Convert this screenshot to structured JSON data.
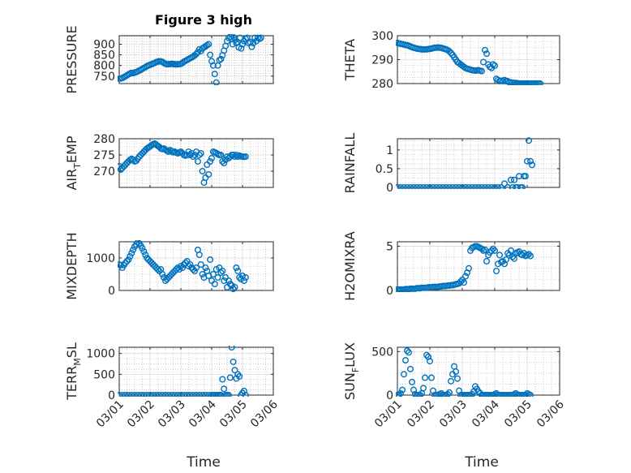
{
  "figure": {
    "title": "Figure 3 high",
    "xlabel": "Time",
    "x_tick_labels": [
      "03/01",
      "03/02",
      "03/03",
      "03/04",
      "03/05",
      "03/06"
    ],
    "marker_color": "#0072BD",
    "grid_color": "#b0b0b0"
  },
  "chart_data": [
    {
      "type": "scatter",
      "ylabel": "PRESSURE",
      "yticks": [
        750,
        800,
        850,
        900
      ],
      "ylim": [
        715,
        940
      ],
      "xlim": [
        0,
        5
      ],
      "grid": true,
      "x": [
        0.0,
        0.05,
        0.1,
        0.15,
        0.2,
        0.25,
        0.3,
        0.35,
        0.4,
        0.45,
        0.5,
        0.55,
        0.6,
        0.65,
        0.7,
        0.75,
        0.8,
        0.85,
        0.9,
        0.95,
        1.0,
        1.05,
        1.1,
        1.15,
        1.2,
        1.25,
        1.3,
        1.35,
        1.4,
        1.45,
        1.5,
        1.55,
        1.6,
        1.65,
        1.7,
        1.75,
        1.8,
        1.85,
        1.9,
        1.95,
        2.0,
        2.05,
        2.1,
        2.15,
        2.2,
        2.25,
        2.3,
        2.35,
        2.4,
        2.45,
        2.5,
        2.55,
        2.6,
        2.65,
        2.7,
        2.75,
        2.8,
        2.85,
        2.9,
        2.95,
        3.0,
        3.05,
        3.1,
        3.15,
        3.2,
        3.25,
        3.3,
        3.35,
        3.4,
        3.45,
        3.5,
        3.55,
        3.6,
        3.65,
        3.68,
        3.72,
        3.76,
        3.8,
        3.84,
        3.88,
        3.92,
        3.96,
        4.0,
        4.05,
        4.1,
        4.15,
        4.2,
        4.25,
        4.3,
        4.35,
        4.4,
        4.45,
        4.5,
        4.55,
        4.6
      ],
      "y": [
        738,
        739,
        741,
        745,
        749,
        754,
        758,
        762,
        765,
        764,
        767,
        769,
        772,
        776,
        780,
        784,
        788,
        792,
        797,
        800,
        803,
        806,
        809,
        812,
        816,
        818,
        820,
        819,
        817,
        812,
        808,
        806,
        806,
        807,
        808,
        807,
        806,
        805,
        806,
        806,
        808,
        812,
        818,
        822,
        826,
        830,
        834,
        838,
        842,
        848,
        854,
        862,
        876,
        868,
        880,
        885,
        890,
        895,
        900,
        850,
        820,
        800,
        760,
        720,
        800,
        825,
        830,
        848,
        870,
        892,
        915,
        930,
        935,
        926,
        900,
        932,
        920,
        905,
        910,
        885,
        930,
        880,
        900,
        915,
        925,
        930,
        905,
        910,
        888,
        905,
        930,
        915,
        930,
        925,
        930
      ]
    },
    {
      "type": "scatter",
      "ylabel": "THETA",
      "yticks": [
        280,
        290,
        300
      ],
      "ylim": [
        280,
        300
      ],
      "xlim": [
        0,
        5
      ],
      "grid": true,
      "x": [
        0.0,
        0.05,
        0.1,
        0.15,
        0.2,
        0.25,
        0.3,
        0.35,
        0.4,
        0.45,
        0.5,
        0.55,
        0.6,
        0.65,
        0.7,
        0.75,
        0.8,
        0.85,
        0.9,
        0.95,
        1.0,
        1.05,
        1.1,
        1.15,
        1.2,
        1.25,
        1.3,
        1.35,
        1.4,
        1.45,
        1.5,
        1.55,
        1.6,
        1.65,
        1.7,
        1.75,
        1.8,
        1.85,
        1.9,
        1.95,
        2.0,
        2.05,
        2.1,
        2.15,
        2.2,
        2.25,
        2.3,
        2.35,
        2.4,
        2.45,
        2.5,
        2.55,
        2.6,
        2.65,
        2.7,
        2.75,
        2.8,
        2.85,
        2.9,
        2.95,
        3.0,
        3.05,
        3.1,
        3.15,
        3.2,
        3.25,
        3.3,
        3.35,
        3.4,
        3.45,
        3.5,
        3.55,
        3.6,
        3.65,
        3.68,
        3.72,
        3.76,
        3.8,
        3.84,
        3.88,
        3.92,
        3.96,
        4.0,
        4.05,
        4.1,
        4.15,
        4.2,
        4.25,
        4.3,
        4.35,
        4.4
      ],
      "y": [
        297,
        296.8,
        296.6,
        296.5,
        296.3,
        296.1,
        296,
        295.8,
        295.5,
        295.2,
        295,
        294.8,
        294.6,
        294.5,
        294.4,
        294.3,
        294.3,
        294.3,
        294.3,
        294.4,
        294.5,
        294.6,
        294.8,
        295,
        295,
        295.1,
        295,
        294.9,
        294.7,
        294.5,
        294.3,
        294,
        293.5,
        292.8,
        292,
        291,
        290,
        289,
        288.5,
        288,
        287.5,
        287,
        286.5,
        286.2,
        286,
        285.8,
        285.6,
        285.5,
        285.4,
        285.5,
        285.6,
        285.4,
        285.2,
        289,
        294,
        292.5,
        288,
        287,
        286.5,
        288,
        287.5,
        282,
        281.5,
        281,
        281.2,
        281,
        281.5,
        281,
        281,
        280.5,
        280.5,
        280.3,
        280.3,
        280.2,
        280.2,
        280,
        280,
        280,
        280,
        280,
        280,
        280,
        280,
        280,
        280,
        280,
        280,
        280,
        280,
        280,
        280
      ]
    },
    {
      "type": "scatter",
      "ylabel": "AIR_TEMP",
      "yticks": [
        270,
        275,
        280
      ],
      "ylim": [
        265,
        280
      ],
      "xlim": [
        0,
        5
      ],
      "grid": true,
      "x": [
        0.0,
        0.05,
        0.1,
        0.15,
        0.2,
        0.25,
        0.3,
        0.35,
        0.4,
        0.45,
        0.5,
        0.55,
        0.6,
        0.65,
        0.7,
        0.75,
        0.8,
        0.85,
        0.9,
        0.95,
        1.0,
        1.05,
        1.1,
        1.15,
        1.2,
        1.25,
        1.3,
        1.35,
        1.4,
        1.45,
        1.5,
        1.55,
        1.6,
        1.65,
        1.7,
        1.75,
        1.8,
        1.85,
        1.9,
        1.95,
        2.0,
        2.05,
        2.1,
        2.15,
        2.2,
        2.25,
        2.3,
        2.35,
        2.4,
        2.45,
        2.5,
        2.55,
        2.6,
        2.65,
        2.7,
        2.75,
        2.8,
        2.85,
        2.9,
        2.95,
        3.0,
        3.05,
        3.1,
        3.15,
        3.2,
        3.25,
        3.3,
        3.35,
        3.4,
        3.45,
        3.5,
        3.55,
        3.6,
        3.65,
        3.7,
        3.75,
        3.8,
        3.85,
        3.9,
        3.95,
        4.0,
        4.05,
        4.1
      ],
      "y": [
        271.5,
        270.5,
        271,
        271.5,
        272,
        272.5,
        273,
        273.5,
        273.8,
        273.5,
        273,
        273.2,
        273.8,
        274.5,
        275,
        275.5,
        276,
        276.5,
        277,
        277.3,
        277.6,
        278,
        278.3,
        278.5,
        278.2,
        277.8,
        277.5,
        277,
        276.8,
        277,
        276.6,
        276.3,
        276,
        276.5,
        276.2,
        275.8,
        276,
        275.7,
        275.5,
        275.8,
        276,
        275.5,
        275,
        274.8,
        275,
        276,
        275,
        275.5,
        274.5,
        275,
        276,
        273,
        275,
        275.5,
        270,
        266.5,
        268,
        272,
        269,
        273,
        274,
        276,
        275.8,
        275.6,
        275.2,
        275,
        275,
        273,
        272.5,
        273.5,
        274.5,
        274,
        274.5,
        275,
        275,
        274.5,
        275,
        274.5,
        274.8,
        274.6,
        274.5,
        274.4,
        274.5
      ]
    },
    {
      "type": "scatter",
      "ylabel": "RAINFALL",
      "yticks": [
        0,
        0.5,
        1
      ],
      "ylim": [
        0,
        1.3
      ],
      "xlim": [
        0,
        5
      ],
      "grid": true,
      "x": [
        0.0,
        0.1,
        0.2,
        0.3,
        0.4,
        0.5,
        0.6,
        0.7,
        0.8,
        0.9,
        1.0,
        1.1,
        1.2,
        1.3,
        1.4,
        1.5,
        1.6,
        1.7,
        1.8,
        1.9,
        2.0,
        2.1,
        2.2,
        2.3,
        2.4,
        2.5,
        2.6,
        2.7,
        2.8,
        2.9,
        3.0,
        3.1,
        3.2,
        3.3,
        3.4,
        3.5,
        3.55,
        3.6,
        3.65,
        3.7,
        3.75,
        3.8,
        3.85,
        3.9,
        3.95,
        4.0,
        4.05,
        4.1,
        4.15
      ],
      "y": [
        0,
        0,
        0,
        0,
        0,
        0,
        0,
        0,
        0,
        0,
        0,
        0,
        0,
        0,
        0,
        0,
        0,
        0,
        0,
        0,
        0,
        0,
        0,
        0,
        0,
        0,
        0,
        0,
        0,
        0,
        0,
        0,
        0,
        0.1,
        0,
        0.2,
        0,
        0.2,
        0,
        0,
        0.3,
        0,
        0,
        0.3,
        0.3,
        0.7,
        1.25,
        0.7,
        0.6
      ]
    },
    {
      "type": "scatter",
      "ylabel": "MIXDEPTH",
      "yticks": [
        0,
        1000
      ],
      "ylim": [
        0,
        1500
      ],
      "xlim": [
        0,
        5
      ],
      "grid": true,
      "x": [
        0.0,
        0.05,
        0.1,
        0.15,
        0.2,
        0.25,
        0.3,
        0.35,
        0.4,
        0.45,
        0.5,
        0.55,
        0.6,
        0.65,
        0.7,
        0.75,
        0.8,
        0.85,
        0.9,
        0.95,
        1.0,
        1.05,
        1.1,
        1.15,
        1.2,
        1.25,
        1.3,
        1.35,
        1.4,
        1.45,
        1.5,
        1.55,
        1.6,
        1.65,
        1.7,
        1.75,
        1.8,
        1.85,
        1.9,
        1.95,
        2.0,
        2.05,
        2.1,
        2.15,
        2.2,
        2.25,
        2.3,
        2.35,
        2.4,
        2.45,
        2.5,
        2.55,
        2.6,
        2.65,
        2.7,
        2.75,
        2.8,
        2.85,
        2.9,
        2.95,
        3.0,
        3.05,
        3.1,
        3.15,
        3.2,
        3.25,
        3.3,
        3.35,
        3.4,
        3.45,
        3.5,
        3.55,
        3.6,
        3.65,
        3.7,
        3.75,
        3.8,
        3.85,
        3.9,
        3.95,
        4.0,
        4.05,
        4.1
      ],
      "y": [
        800,
        780,
        700,
        780,
        850,
        900,
        950,
        1050,
        1150,
        1250,
        1350,
        1420,
        1480,
        1450,
        1380,
        1300,
        1200,
        1100,
        1000,
        950,
        900,
        850,
        800,
        750,
        700,
        650,
        600,
        650,
        500,
        400,
        300,
        350,
        400,
        450,
        500,
        550,
        600,
        650,
        700,
        650,
        750,
        700,
        800,
        850,
        900,
        750,
        800,
        700,
        650,
        600,
        700,
        1250,
        1100,
        800,
        500,
        400,
        700,
        600,
        450,
        950,
        300,
        500,
        200,
        650,
        400,
        700,
        550,
        600,
        300,
        400,
        100,
        300,
        200,
        150,
        50,
        100,
        700,
        600,
        400,
        350,
        450,
        300,
        400
      ]
    },
    {
      "type": "scatter",
      "ylabel": "H2OMIXRA",
      "yticks": [
        0,
        5
      ],
      "ylim": [
        0,
        5.5
      ],
      "xlim": [
        0,
        5
      ],
      "grid": true,
      "x": [
        0.0,
        0.05,
        0.1,
        0.15,
        0.2,
        0.25,
        0.3,
        0.35,
        0.4,
        0.45,
        0.5,
        0.55,
        0.6,
        0.65,
        0.7,
        0.75,
        0.8,
        0.85,
        0.9,
        0.95,
        1.0,
        1.05,
        1.1,
        1.15,
        1.2,
        1.25,
        1.3,
        1.35,
        1.4,
        1.45,
        1.5,
        1.55,
        1.6,
        1.65,
        1.7,
        1.75,
        1.8,
        1.85,
        1.9,
        1.95,
        2.0,
        2.05,
        2.1,
        2.15,
        2.2,
        2.25,
        2.3,
        2.35,
        2.4,
        2.45,
        2.5,
        2.55,
        2.6,
        2.65,
        2.7,
        2.75,
        2.8,
        2.85,
        2.9,
        2.95,
        3.0,
        3.05,
        3.1,
        3.15,
        3.2,
        3.25,
        3.3,
        3.35,
        3.4,
        3.45,
        3.5,
        3.55,
        3.6,
        3.65,
        3.7,
        3.75,
        3.8,
        3.85,
        3.9,
        3.95,
        4.0,
        4.05,
        4.1
      ],
      "y": [
        0.1,
        0.1,
        0.1,
        0.1,
        0.1,
        0.15,
        0.15,
        0.15,
        0.2,
        0.2,
        0.2,
        0.2,
        0.25,
        0.25,
        0.25,
        0.3,
        0.3,
        0.3,
        0.3,
        0.35,
        0.35,
        0.35,
        0.4,
        0.4,
        0.4,
        0.4,
        0.45,
        0.45,
        0.5,
        0.5,
        0.5,
        0.55,
        0.55,
        0.6,
        0.6,
        0.65,
        0.7,
        0.75,
        0.8,
        1.0,
        1.2,
        0.9,
        1.6,
        2.0,
        2.5,
        4.5,
        4.8,
        4.9,
        5.0,
        5.0,
        4.9,
        4.8,
        4.7,
        4.5,
        4.6,
        3.3,
        4.0,
        4.3,
        4.5,
        4.7,
        4.5,
        2.2,
        3.0,
        4.0,
        3.2,
        3.3,
        3.0,
        3.5,
        4.2,
        4.0,
        4.5,
        3.8,
        3.6,
        4.2,
        4.3,
        4.4,
        4.1,
        4.0,
        4.2,
        3.9,
        4.0,
        4.1,
        3.9
      ]
    },
    {
      "type": "scatter",
      "ylabel": "TERR_MSL",
      "yticks": [
        0,
        500,
        1000
      ],
      "ylim": [
        0,
        1150
      ],
      "xlim": [
        0,
        5
      ],
      "grid": true,
      "x": [
        0.0,
        0.1,
        0.2,
        0.3,
        0.4,
        0.5,
        0.6,
        0.7,
        0.8,
        0.9,
        1.0,
        1.1,
        1.2,
        1.3,
        1.4,
        1.5,
        1.6,
        1.7,
        1.8,
        1.9,
        2.0,
        2.1,
        2.2,
        2.3,
        2.4,
        2.5,
        2.6,
        2.7,
        2.8,
        2.9,
        3.0,
        3.05,
        3.1,
        3.15,
        3.2,
        3.25,
        3.3,
        3.35,
        3.4,
        3.45,
        3.5,
        3.55,
        3.6,
        3.65,
        3.7,
        3.75,
        3.8,
        3.85,
        3.9,
        3.95,
        4.0,
        4.05,
        4.1
      ],
      "y": [
        0,
        0,
        0,
        0,
        0,
        0,
        0,
        0,
        0,
        0,
        0,
        0,
        0,
        0,
        0,
        0,
        0,
        0,
        0,
        0,
        0,
        0,
        0,
        0,
        0,
        0,
        0,
        0,
        0,
        0,
        0,
        0,
        0,
        0,
        0,
        0,
        0,
        380,
        150,
        0,
        0,
        0,
        420,
        1150,
        800,
        600,
        400,
        500,
        450,
        0,
        50,
        100,
        0
      ]
    },
    {
      "type": "scatter",
      "ylabel": "SUN_FLUX",
      "yticks": [
        0,
        500
      ],
      "ylim": [
        0,
        550
      ],
      "xlim": [
        0,
        5
      ],
      "grid": true,
      "x": [
        0.0,
        0.05,
        0.1,
        0.15,
        0.2,
        0.25,
        0.3,
        0.35,
        0.4,
        0.45,
        0.5,
        0.55,
        0.6,
        0.65,
        0.7,
        0.75,
        0.8,
        0.85,
        0.9,
        0.95,
        1.0,
        1.05,
        1.1,
        1.15,
        1.2,
        1.25,
        1.3,
        1.35,
        1.4,
        1.45,
        1.5,
        1.55,
        1.6,
        1.65,
        1.7,
        1.75,
        1.8,
        1.85,
        1.9,
        1.95,
        2.0,
        2.05,
        2.1,
        2.15,
        2.2,
        2.25,
        2.3,
        2.35,
        2.4,
        2.45,
        2.5,
        2.55,
        2.6,
        2.65,
        2.7,
        2.75,
        2.8,
        2.85,
        2.9,
        2.95,
        3.0,
        3.05,
        3.1,
        3.15,
        3.2,
        3.25,
        3.3,
        3.35,
        3.4,
        3.45,
        3.5,
        3.55,
        3.6,
        3.65,
        3.7,
        3.75,
        3.8,
        3.85,
        3.9,
        3.95,
        4.0,
        4.05,
        4.1
      ],
      "y": [
        0,
        0,
        20,
        60,
        240,
        400,
        510,
        490,
        300,
        150,
        60,
        10,
        0,
        0,
        0,
        20,
        80,
        200,
        460,
        440,
        390,
        200,
        50,
        0,
        0,
        0,
        10,
        20,
        0,
        0,
        0,
        10,
        30,
        160,
        240,
        330,
        270,
        190,
        50,
        0,
        0,
        0,
        0,
        0,
        0,
        0,
        10,
        40,
        100,
        70,
        40,
        20,
        0,
        0,
        0,
        0,
        0,
        0,
        0,
        0,
        10,
        20,
        0,
        0,
        0,
        0,
        0,
        0,
        0,
        0,
        0,
        0,
        10,
        20,
        0,
        0,
        0,
        0,
        0,
        0,
        20,
        10,
        0
      ]
    }
  ]
}
